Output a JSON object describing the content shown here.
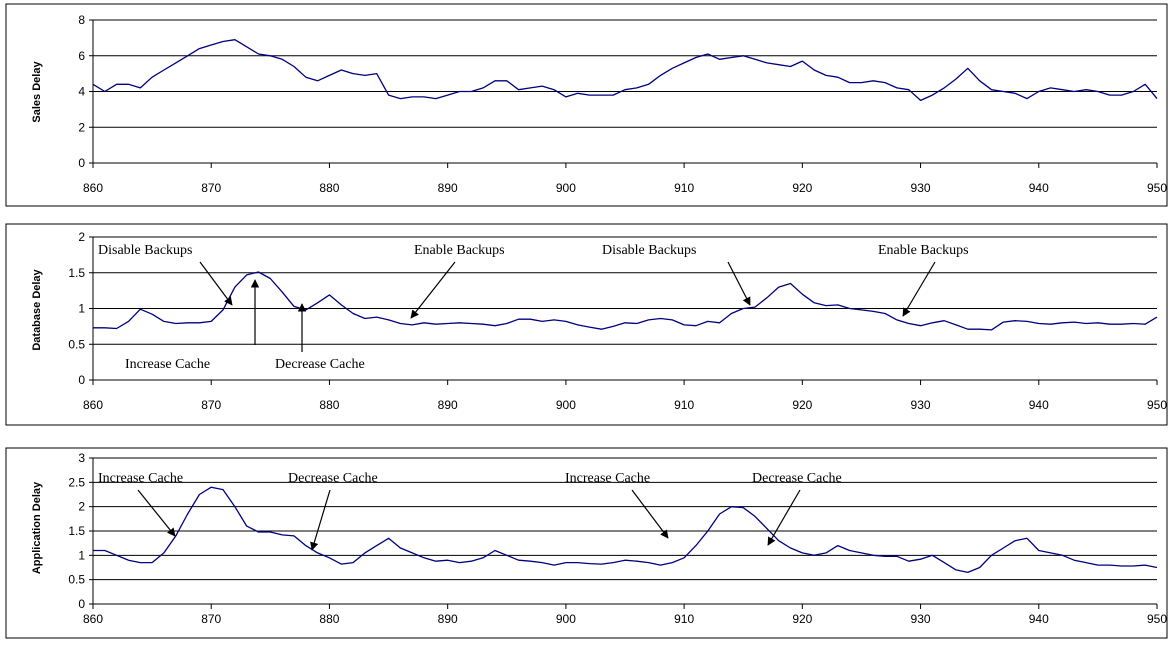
{
  "chart_data": [
    {
      "type": "line",
      "ylabel": "Sales Delay",
      "xlim": [
        860,
        950
      ],
      "ylim": [
        0,
        8
      ],
      "yticks": [
        0,
        2,
        4,
        6,
        8
      ],
      "xticks": [
        860,
        870,
        880,
        890,
        900,
        910,
        920,
        930,
        940,
        950
      ],
      "grid": true,
      "line_color": "#000080",
      "series": [
        {
          "x": [
            860,
            861,
            862,
            863,
            864,
            865,
            866,
            867,
            868,
            869,
            870,
            871,
            872,
            873,
            874,
            875,
            876,
            877,
            878,
            879,
            880,
            881,
            882,
            883,
            884,
            885,
            886,
            887,
            888,
            889,
            890,
            891,
            892,
            893,
            894,
            895,
            896,
            897,
            898,
            899,
            900,
            901,
            902,
            903,
            904,
            905,
            906,
            907,
            908,
            909,
            910,
            911,
            912,
            913,
            914,
            915,
            916,
            917,
            918,
            919,
            920,
            921,
            922,
            923,
            924,
            925,
            926,
            927,
            928,
            929,
            930,
            931,
            932,
            933,
            934,
            935,
            936,
            937,
            938,
            939,
            940,
            941,
            942,
            943,
            944,
            945,
            946,
            947,
            948,
            949,
            950
          ],
          "values": [
            4.4,
            4.0,
            4.4,
            4.4,
            4.2,
            4.8,
            5.2,
            5.6,
            6.0,
            6.4,
            6.6,
            6.8,
            6.9,
            6.5,
            6.1,
            6.0,
            5.8,
            5.4,
            4.8,
            4.6,
            4.9,
            5.2,
            5.0,
            4.9,
            5.0,
            3.8,
            3.6,
            3.7,
            3.7,
            3.6,
            3.8,
            4.0,
            4.0,
            4.2,
            4.6,
            4.6,
            4.1,
            4.2,
            4.3,
            4.1,
            3.7,
            3.9,
            3.8,
            3.8,
            3.8,
            4.1,
            4.2,
            4.4,
            4.9,
            5.3,
            5.6,
            5.9,
            6.1,
            5.8,
            5.9,
            6.0,
            5.8,
            5.6,
            5.5,
            5.4,
            5.7,
            5.2,
            4.9,
            4.8,
            4.5,
            4.5,
            4.6,
            4.5,
            4.2,
            4.1,
            3.5,
            3.8,
            4.2,
            4.7,
            5.3,
            4.6,
            4.1,
            4.0,
            3.9,
            3.6,
            4.0,
            4.2,
            4.1,
            4.0,
            4.1,
            4.0,
            3.8,
            3.8,
            4.0,
            4.4,
            3.6
          ]
        }
      ],
      "annotations": []
    },
    {
      "type": "line",
      "ylabel": "Database Delay",
      "xlim": [
        860,
        950
      ],
      "ylim": [
        0,
        2
      ],
      "yticks": [
        0,
        0.5,
        1,
        1.5,
        2
      ],
      "xticks": [
        860,
        870,
        880,
        890,
        900,
        910,
        920,
        930,
        940,
        950
      ],
      "grid": true,
      "line_color": "#000080",
      "series": [
        {
          "x": [
            860,
            861,
            862,
            863,
            864,
            865,
            866,
            867,
            868,
            869,
            870,
            871,
            872,
            873,
            874,
            875,
            876,
            877,
            878,
            879,
            880,
            881,
            882,
            883,
            884,
            885,
            886,
            887,
            888,
            889,
            890,
            891,
            892,
            893,
            894,
            895,
            896,
            897,
            898,
            899,
            900,
            901,
            902,
            903,
            904,
            905,
            906,
            907,
            908,
            909,
            910,
            911,
            912,
            913,
            914,
            915,
            916,
            917,
            918,
            919,
            920,
            921,
            922,
            923,
            924,
            925,
            926,
            927,
            928,
            929,
            930,
            931,
            932,
            933,
            934,
            935,
            936,
            937,
            938,
            939,
            940,
            941,
            942,
            943,
            944,
            945,
            946,
            947,
            948,
            949,
            950
          ],
          "values": [
            0.73,
            0.73,
            0.72,
            0.82,
            0.99,
            0.92,
            0.82,
            0.79,
            0.8,
            0.8,
            0.82,
            0.98,
            1.3,
            1.47,
            1.51,
            1.42,
            1.23,
            1.03,
            0.98,
            1.08,
            1.19,
            1.05,
            0.93,
            0.86,
            0.88,
            0.84,
            0.79,
            0.77,
            0.8,
            0.78,
            0.79,
            0.8,
            0.79,
            0.78,
            0.76,
            0.79,
            0.85,
            0.85,
            0.82,
            0.84,
            0.82,
            0.77,
            0.74,
            0.71,
            0.75,
            0.8,
            0.79,
            0.84,
            0.86,
            0.84,
            0.77,
            0.76,
            0.82,
            0.8,
            0.93,
            1.0,
            1.02,
            1.15,
            1.3,
            1.35,
            1.2,
            1.08,
            1.04,
            1.05,
            1.0,
            0.98,
            0.96,
            0.93,
            0.84,
            0.79,
            0.76,
            0.8,
            0.83,
            0.77,
            0.71,
            0.71,
            0.7,
            0.81,
            0.83,
            0.82,
            0.79,
            0.78,
            0.8,
            0.81,
            0.79,
            0.8,
            0.78,
            0.78,
            0.79,
            0.78,
            0.88
          ]
        }
      ],
      "annotations": [
        {
          "text": "Disable Backups",
          "x": 872
        },
        {
          "text": "Enable Backups",
          "x": 887
        },
        {
          "text": "Disable Backups",
          "x": 916
        },
        {
          "text": "Enable Backups",
          "x": 928
        },
        {
          "text": "Increase Cache",
          "x": 874
        },
        {
          "text": "Decrease Cache",
          "x": 877.8
        }
      ]
    },
    {
      "type": "line",
      "ylabel": "Application Delay",
      "xlim": [
        860,
        950
      ],
      "ylim": [
        0,
        3
      ],
      "yticks": [
        0,
        0.5,
        1,
        1.5,
        2,
        2.5,
        3
      ],
      "xticks": [
        860,
        870,
        880,
        890,
        900,
        910,
        920,
        930,
        940,
        950
      ],
      "grid": true,
      "line_color": "#000080",
      "series": [
        {
          "x": [
            860,
            861,
            862,
            863,
            864,
            865,
            866,
            867,
            868,
            869,
            870,
            871,
            872,
            873,
            874,
            875,
            876,
            877,
            878,
            879,
            880,
            881,
            882,
            883,
            884,
            885,
            886,
            887,
            888,
            889,
            890,
            891,
            892,
            893,
            894,
            895,
            896,
            897,
            898,
            899,
            900,
            901,
            902,
            903,
            904,
            905,
            906,
            907,
            908,
            909,
            910,
            911,
            912,
            913,
            914,
            915,
            916,
            917,
            918,
            919,
            920,
            921,
            922,
            923,
            924,
            925,
            926,
            927,
            928,
            929,
            930,
            931,
            932,
            933,
            934,
            935,
            936,
            937,
            938,
            939,
            940,
            941,
            942,
            943,
            944,
            945,
            946,
            947,
            948,
            949,
            950
          ],
          "values": [
            1.1,
            1.1,
            1.0,
            0.9,
            0.85,
            0.85,
            1.05,
            1.4,
            1.85,
            2.25,
            2.4,
            2.35,
            2.0,
            1.6,
            1.48,
            1.48,
            1.42,
            1.4,
            1.2,
            1.05,
            0.95,
            0.82,
            0.85,
            1.05,
            1.2,
            1.35,
            1.15,
            1.05,
            0.95,
            0.88,
            0.9,
            0.85,
            0.88,
            0.95,
            1.1,
            1.0,
            0.9,
            0.88,
            0.85,
            0.8,
            0.85,
            0.85,
            0.83,
            0.82,
            0.85,
            0.9,
            0.88,
            0.85,
            0.8,
            0.85,
            0.95,
            1.2,
            1.5,
            1.85,
            2.0,
            1.98,
            1.8,
            1.55,
            1.3,
            1.15,
            1.05,
            1.0,
            1.05,
            1.2,
            1.1,
            1.05,
            1.0,
            0.98,
            0.98,
            0.88,
            0.92,
            1.0,
            0.85,
            0.7,
            0.65,
            0.75,
            1.0,
            1.15,
            1.3,
            1.35,
            1.1,
            1.05,
            1.0,
            0.9,
            0.85,
            0.8,
            0.8,
            0.78,
            0.78,
            0.8,
            0.75
          ]
        }
      ],
      "annotations": [
        {
          "text": "Increase Cache",
          "x": 867
        },
        {
          "text": "Decrease Cache",
          "x": 878.5
        },
        {
          "text": "Increase Cache",
          "x": 909
        },
        {
          "text": "Decrease Cache",
          "x": 917
        }
      ]
    }
  ]
}
